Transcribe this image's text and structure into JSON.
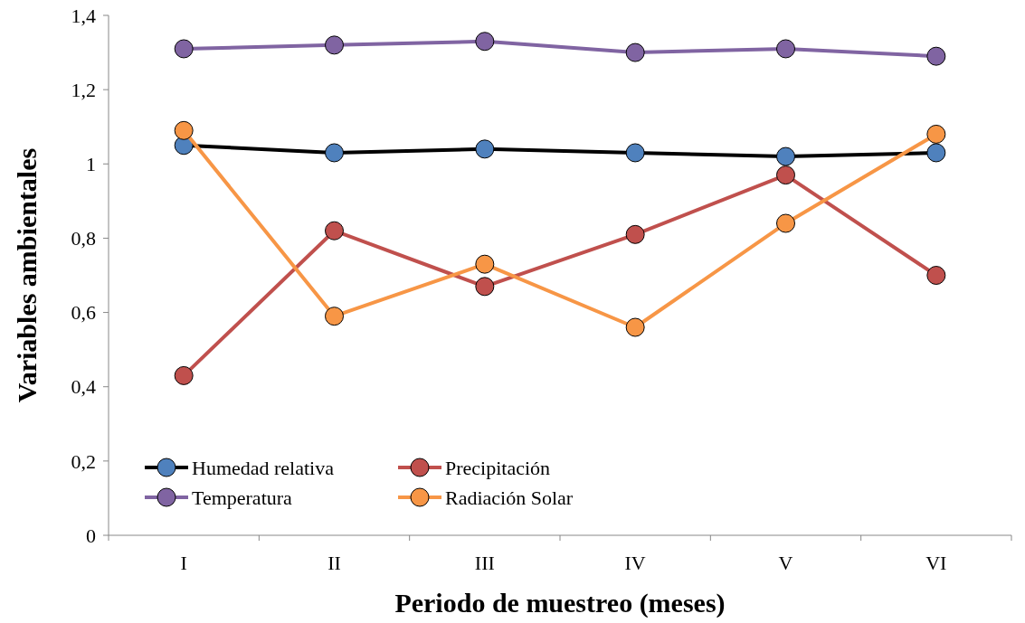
{
  "chart_data": {
    "type": "line",
    "xlabel": "Periodo de muestreo (meses)",
    "ylabel": "Variables ambientales",
    "categories": [
      "I",
      "II",
      "III",
      "IV",
      "V",
      "VI"
    ],
    "series": [
      {
        "name": "Humedad relativa",
        "color": "#000000",
        "colors": [
          "#4f81bd",
          "#4f81bd",
          "#4f81bd",
          "#4f81bd",
          "#4f81bd",
          "#4f81bd"
        ],
        "values": [
          1.05,
          1.03,
          1.04,
          1.03,
          1.02,
          1.03
        ]
      },
      {
        "name": "Precipitación",
        "color": "#c0504d",
        "values": [
          0.43,
          0.82,
          0.67,
          0.81,
          0.97,
          0.7
        ]
      },
      {
        "name": "Temperatura",
        "color": "#8064a2",
        "values": [
          1.31,
          1.32,
          1.33,
          1.3,
          1.31,
          1.29
        ]
      },
      {
        "name": "Radiación Solar",
        "color": "#f79646",
        "values": [
          1.09,
          0.59,
          0.73,
          0.56,
          0.84,
          1.08
        ]
      }
    ],
    "ylim": [
      0,
      1.4
    ],
    "yticks": [
      {
        "value": 0,
        "label": "0"
      },
      {
        "value": 0.2,
        "label": "0,2"
      },
      {
        "value": 0.4,
        "label": "0,4"
      },
      {
        "value": 0.6,
        "label": "0,6"
      },
      {
        "value": 0.8,
        "label": "0,8"
      },
      {
        "value": 1,
        "label": "1"
      },
      {
        "value": 1.2,
        "label": "1,2"
      },
      {
        "value": 1.4,
        "label": "1,4"
      }
    ],
    "grid": false,
    "legend": "bottom left",
    "marker": "circle",
    "line_style": "solid"
  }
}
